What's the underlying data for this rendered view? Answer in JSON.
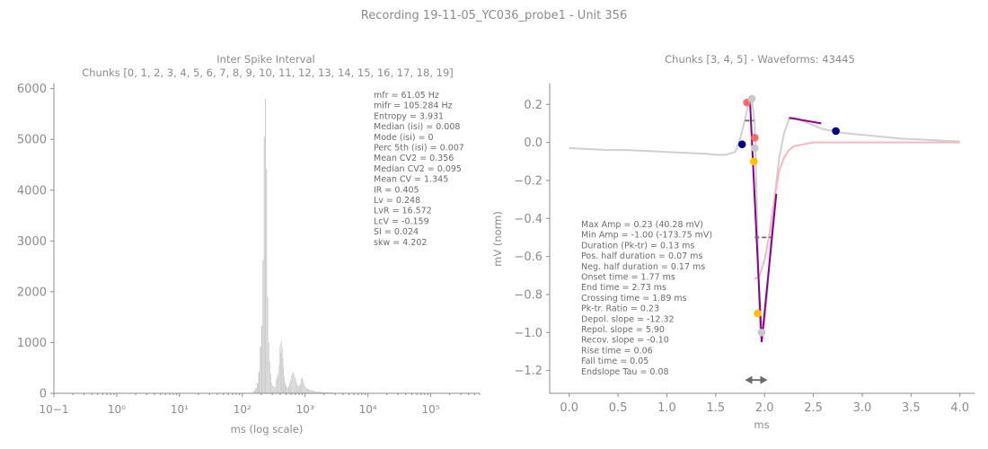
{
  "suptitle": "Recording 19-11-05_YC036_probe1 - Unit 356",
  "isi_chart": {
    "title_line1": "Inter Spike Interval",
    "title_line2": "Chunks [0, 1, 2, 3, 4, 5, 6, 7, 8, 9, 10, 11, 12, 13, 14, 15, 16, 17, 18, 19]",
    "xlabel": "ms (log scale)",
    "ylabel": "",
    "stats": [
      "mfr = 61.05 Hz",
      "mifr = 105.284 Hz",
      "Entropy = 3.931",
      "Median (isi) = 0.008",
      "Mode (isi) = 0",
      "Perc 5th (isi) = 0.007",
      "Mean CV2 = 0.356",
      "Median CV2 = 0.095",
      "Mean CV = 1.345",
      "IR = 0.405",
      "Lv = 0.248",
      "LvR = 16.572",
      "LcV = -0.159",
      "SI = 0.024",
      "skw = 4.202"
    ]
  },
  "waveform_chart": {
    "title": "Chunks [3, 4, 5] - Waveforms: 43445",
    "xlabel": "ms",
    "ylabel": "mV (norm)",
    "stats": [
      "Max Amp = 0.23 (40.28 mV)",
      "Min Amp = -1.00 (-173.75 mV)",
      "Duration (Pk-tr) = 0.13 ms",
      "Pos. half duration = 0.07 ms",
      "Neg. half duration = 0.17 ms",
      "Onset time = 1.77 ms",
      "End time = 2.73 ms",
      "Crossing time = 1.89 ms",
      "Pk-tr. Ratio = 0.23",
      "Depol. slope = -12.32",
      "Repol. slope = 5.90",
      "Recov. slope = -0.10",
      "Rise time = 0.06",
      "Fall time = 0.05",
      "Endslope Tau = 0.08"
    ]
  },
  "chart_data": [
    {
      "type": "bar",
      "title": "Inter Spike Interval",
      "subtitle": "Chunks [0, 1, 2, 3, 4, 5, 6, 7, 8, 9, 10, 11, 12, 13, 14, 15, 16, 17, 18, 19]",
      "xlabel": "ms (log scale)",
      "ylabel": "",
      "xscale": "log",
      "xlim": [
        0.1,
        600000
      ],
      "ylim": [
        0,
        6100
      ],
      "xticks": [
        0.1,
        1,
        10,
        100,
        1000,
        10000,
        100000
      ],
      "xticklabels": [
        "10−1",
        "10⁰",
        "10¹",
        "10²",
        "10³",
        "10⁴",
        "10⁵"
      ],
      "yticks": [
        0,
        1000,
        2000,
        3000,
        4000,
        5000,
        6000
      ],
      "yticklabels": [
        "0",
        "1000",
        "2000",
        "3000",
        "4000",
        "5000",
        "6000"
      ],
      "bar_color": "#c8c8c8",
      "bins_ms": [
        150,
        160,
        170,
        180,
        190,
        200,
        210,
        220,
        230,
        240,
        250,
        260,
        270,
        280,
        290,
        300,
        310,
        320,
        330,
        340,
        350,
        360,
        370,
        380,
        390,
        400,
        410,
        420,
        430,
        440,
        450,
        460,
        470,
        480,
        490,
        500,
        520,
        540,
        560,
        580,
        600,
        620,
        640,
        660,
        680,
        700,
        720,
        740,
        760,
        780,
        800,
        830,
        860,
        890,
        920,
        950,
        980,
        1010,
        1040,
        1080,
        1120,
        1160,
        1200,
        1250,
        1300,
        1350,
        1400,
        1450,
        1500,
        1560,
        1620,
        1700,
        1800,
        1900,
        2000,
        2200,
        2400,
        2600,
        2800,
        3000,
        3300,
        3600,
        4000,
        4500,
        5000,
        6000,
        7000,
        8000,
        10000,
        12000,
        15000,
        20000
      ],
      "counts": [
        50,
        100,
        200,
        420,
        920,
        1330,
        2620,
        5050,
        5800,
        4420,
        1900,
        1000,
        620,
        380,
        200,
        160,
        140,
        120,
        130,
        260,
        300,
        350,
        400,
        560,
        900,
        1000,
        800,
        1050,
        900,
        700,
        500,
        320,
        250,
        200,
        160,
        130,
        110,
        140,
        200,
        260,
        350,
        400,
        430,
        380,
        310,
        270,
        220,
        170,
        150,
        140,
        160,
        200,
        280,
        320,
        260,
        200,
        150,
        120,
        100,
        90,
        80,
        70,
        60,
        70,
        60,
        50,
        40,
        40,
        30,
        30,
        40,
        30,
        20,
        20,
        20,
        20,
        15,
        15,
        10,
        10,
        10,
        10,
        10,
        5,
        5,
        5,
        5,
        5,
        5,
        5,
        5,
        5
      ],
      "stats": [
        "mfr = 61.05 Hz",
        "mifr = 105.284 Hz",
        "Entropy = 3.931",
        "Median (isi) = 0.008",
        "Mode (isi) = 0",
        "Perc 5th (isi) = 0.007",
        "Mean CV2 = 0.356",
        "Median CV2 = 0.095",
        "Mean CV = 1.345",
        "IR = 0.405",
        "Lv = 0.248",
        "LvR = 16.572",
        "LcV = -0.159",
        "SI = 0.024",
        "skw = 4.202"
      ]
    },
    {
      "type": "line",
      "title": "Chunks [3, 4, 5] - Waveforms: 43445",
      "xlabel": "ms",
      "ylabel": "mV (norm)",
      "xlim": [
        -0.2,
        4.15
      ],
      "ylim": [
        -1.32,
        0.31
      ],
      "xticks": [
        0.0,
        0.5,
        1.0,
        1.5,
        2.0,
        2.5,
        3.0,
        3.5,
        4.0
      ],
      "xticklabels": [
        "0.0",
        "0.5",
        "1.0",
        "1.5",
        "2.0",
        "2.5",
        "3.0",
        "3.5",
        "4.0"
      ],
      "yticks": [
        0.2,
        0.0,
        -0.2,
        -0.4,
        -0.6,
        -0.8,
        -1.0,
        -1.2
      ],
      "yticklabels": [
        "0.2",
        "0.0",
        "−0.2",
        "−0.4",
        "−0.6",
        "−0.8",
        "−1.0",
        "−1.2"
      ],
      "series": [
        {
          "role": "waveform",
          "color": "#d0d0d0",
          "x": [
            0.0,
            0.2,
            0.4,
            0.6,
            0.8,
            1.0,
            1.2,
            1.4,
            1.5,
            1.6,
            1.7,
            1.75,
            1.8,
            1.83,
            1.87,
            1.9,
            1.93,
            1.95,
            1.98,
            2.0,
            2.03,
            2.06,
            2.1,
            2.15,
            2.2,
            2.25,
            2.3,
            2.4,
            2.5,
            2.6,
            2.7,
            2.8,
            3.0,
            3.2,
            3.4,
            3.6,
            3.8,
            4.0
          ],
          "y": [
            -0.03,
            -0.035,
            -0.04,
            -0.04,
            -0.045,
            -0.05,
            -0.055,
            -0.06,
            -0.065,
            -0.065,
            -0.05,
            0.02,
            0.12,
            0.2,
            0.23,
            0.1,
            -0.5,
            -0.97,
            -1.0,
            -0.95,
            -0.78,
            -0.55,
            -0.3,
            -0.08,
            0.05,
            0.12,
            0.13,
            0.11,
            0.09,
            0.07,
            0.06,
            0.05,
            0.04,
            0.03,
            0.02,
            0.015,
            0.01,
            0.005
          ]
        },
        {
          "role": "fit",
          "color": "#f7b6c2",
          "x": [
            1.9,
            1.95,
            2.0,
            2.05,
            2.1,
            2.15,
            2.2,
            2.25,
            2.3,
            2.4,
            2.5,
            2.7,
            3.0,
            3.5,
            4.0
          ],
          "y": [
            -0.72,
            -0.7,
            -0.62,
            -0.48,
            -0.3,
            -0.15,
            -0.08,
            -0.04,
            -0.02,
            -0.01,
            0.0,
            0.0,
            0.0,
            0.0,
            0.0
          ]
        },
        {
          "role": "slopes",
          "color": "#8b008b",
          "segments": [
            {
              "x": [
                1.85,
                1.97
              ],
              "y": [
                0.23,
                -1.05
              ]
            },
            {
              "x": [
                1.97,
                2.12
              ],
              "y": [
                -1.05,
                -0.27
              ]
            },
            {
              "x": [
                2.25,
                2.58
              ],
              "y": [
                0.13,
                0.1
              ]
            }
          ]
        },
        {
          "role": "half-widths",
          "color": "#6b6b6b",
          "segments": [
            {
              "x": [
                1.8,
                1.89
              ],
              "y": [
                0.115,
                0.115
              ]
            },
            {
              "x": [
                1.9,
                2.07
              ],
              "y": [
                -0.5,
                -0.5
              ]
            }
          ]
        }
      ],
      "markers": [
        {
          "x": 1.77,
          "y": -0.01,
          "color": "#000080"
        },
        {
          "x": 2.73,
          "y": 0.06,
          "color": "#000080"
        },
        {
          "x": 1.82,
          "y": 0.21,
          "color": "#ff6b6b"
        },
        {
          "x": 1.87,
          "y": 0.23,
          "color": "#c8c8c8"
        },
        {
          "x": 1.9,
          "y": 0.025,
          "color": "#f26b6b"
        },
        {
          "x": 1.9,
          "y": -0.03,
          "color": "#c8c8c8"
        },
        {
          "x": 1.89,
          "y": -0.1,
          "color": "#ffc000"
        },
        {
          "x": 1.93,
          "y": -0.9,
          "color": "#ffc000"
        },
        {
          "x": 1.97,
          "y": -1.0,
          "color": "#c8c8c8"
        }
      ],
      "duration_arrow": {
        "x": [
          1.8,
          2.03
        ],
        "y": -1.25,
        "color": "#6b6b6b"
      },
      "stats": [
        "Max Amp = 0.23 (40.28 mV)",
        "Min Amp = -1.00 (-173.75 mV)",
        "Duration (Pk-tr) = 0.13 ms",
        "Pos. half duration = 0.07 ms",
        "Neg. half duration = 0.17 ms",
        "Onset time = 1.77 ms",
        "End time = 2.73 ms",
        "Crossing time = 1.89 ms",
        "Pk-tr. Ratio = 0.23",
        "Depol. slope = -12.32",
        "Repol. slope = 5.90",
        "Recov. slope = -0.10",
        "Rise time = 0.06",
        "Fall time = 0.05",
        "Endslope Tau = 0.08"
      ]
    }
  ]
}
